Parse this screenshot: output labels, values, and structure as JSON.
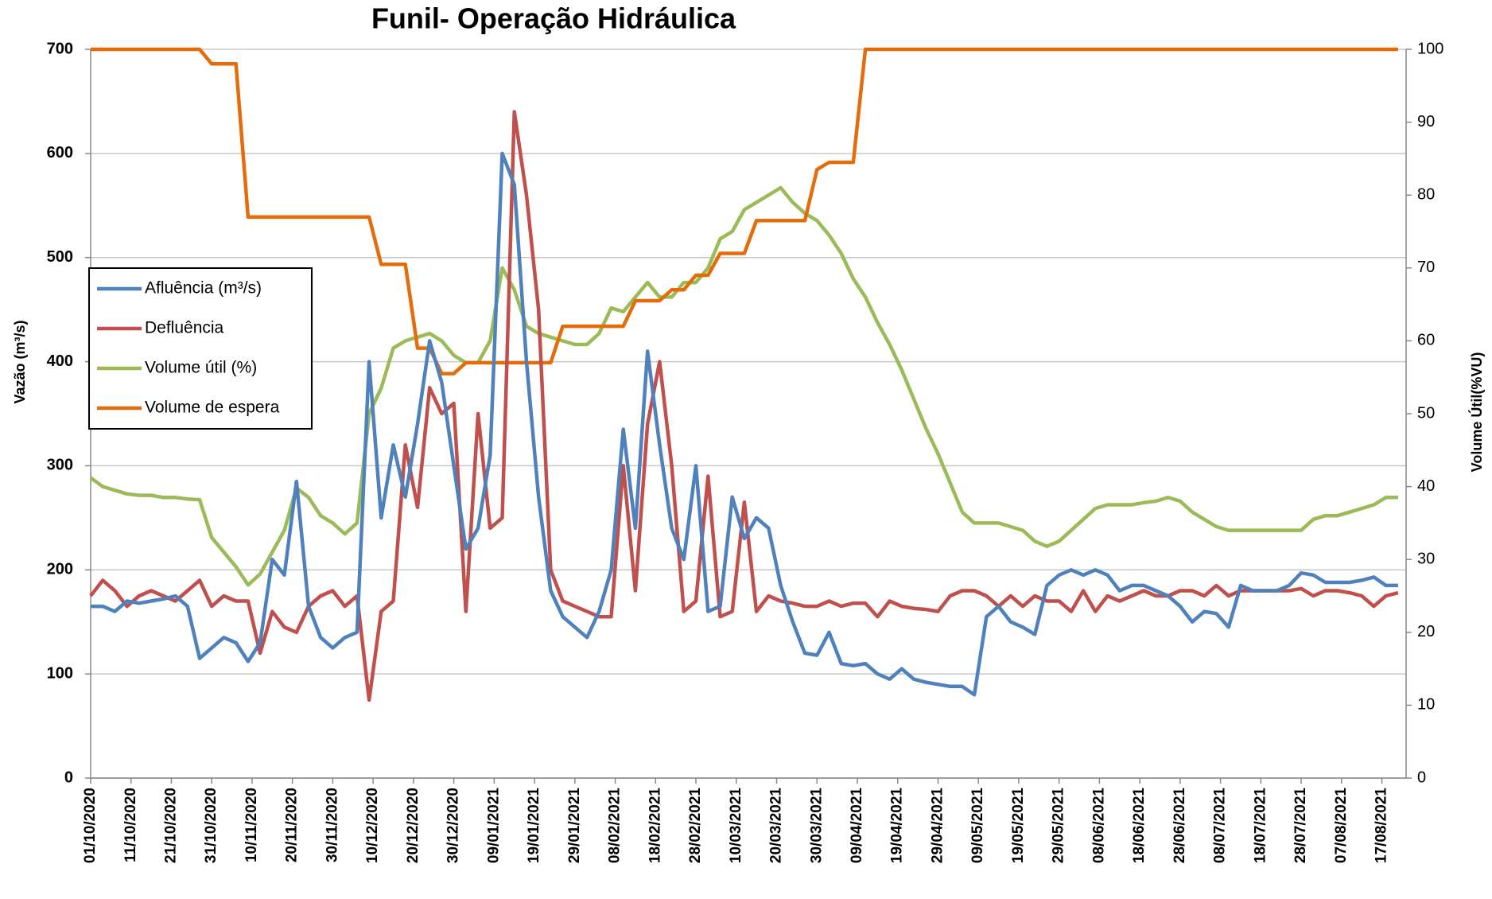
{
  "chart_data": {
    "type": "line",
    "title": "Funil- Operação Hidráulica",
    "y_label": "Vazão (m³/s)",
    "y2_label": "Volume Útil(%VU)",
    "xlim": [
      "01/10/2020",
      "23/08/2021"
    ],
    "xticks": [
      "01/10/2020",
      "11/10/2020",
      "21/10/2020",
      "31/10/2020",
      "10/11/2020",
      "20/11/2020",
      "30/11/2020",
      "10/12/2020",
      "20/12/2020",
      "30/12/2020",
      "09/01/2021",
      "19/01/2021",
      "29/01/2021",
      "08/02/2021",
      "18/02/2021",
      "28/02/2021",
      "10/03/2021",
      "20/03/2021",
      "30/03/2021",
      "09/04/2021",
      "19/04/2021",
      "29/04/2021",
      "09/05/2021",
      "19/05/2021",
      "29/05/2021",
      "08/06/2021",
      "18/06/2021",
      "28/06/2021",
      "08/07/2021",
      "18/07/2021",
      "28/07/2021",
      "07/08/2021",
      "17/08/2021"
    ],
    "ylim": [
      0,
      700
    ],
    "yticks": [
      0,
      100,
      200,
      300,
      400,
      500,
      600,
      700
    ],
    "y2lim": [
      0,
      100
    ],
    "y2ticks": [
      0,
      10,
      20,
      30,
      40,
      50,
      60,
      70,
      80,
      90,
      100
    ],
    "grid": true,
    "legend": "upper-left",
    "x": [
      "01/10/2020",
      "04/10/2020",
      "07/10/2020",
      "10/10/2020",
      "13/10/2020",
      "16/10/2020",
      "19/10/2020",
      "22/10/2020",
      "25/10/2020",
      "28/10/2020",
      "31/10/2020",
      "03/11/2020",
      "06/11/2020",
      "09/11/2020",
      "12/11/2020",
      "15/11/2020",
      "18/11/2020",
      "21/11/2020",
      "24/11/2020",
      "27/11/2020",
      "30/11/2020",
      "03/12/2020",
      "06/12/2020",
      "09/12/2020",
      "12/12/2020",
      "15/12/2020",
      "18/12/2020",
      "21/12/2020",
      "24/12/2020",
      "27/12/2020",
      "30/12/2020",
      "02/01/2021",
      "05/01/2021",
      "08/01/2021",
      "11/01/2021",
      "14/01/2021",
      "17/01/2021",
      "20/01/2021",
      "23/01/2021",
      "26/01/2021",
      "29/01/2021",
      "01/02/2021",
      "04/02/2021",
      "07/02/2021",
      "10/02/2021",
      "13/02/2021",
      "16/02/2021",
      "19/02/2021",
      "22/02/2021",
      "25/02/2021",
      "28/02/2021",
      "03/03/2021",
      "06/03/2021",
      "09/03/2021",
      "12/03/2021",
      "15/03/2021",
      "18/03/2021",
      "21/03/2021",
      "24/03/2021",
      "27/03/2021",
      "30/03/2021",
      "02/04/2021",
      "05/04/2021",
      "08/04/2021",
      "11/04/2021",
      "14/04/2021",
      "17/04/2021",
      "20/04/2021",
      "23/04/2021",
      "26/04/2021",
      "29/04/2021",
      "02/05/2021",
      "05/05/2021",
      "08/05/2021",
      "11/05/2021",
      "14/05/2021",
      "17/05/2021",
      "20/05/2021",
      "23/05/2021",
      "26/05/2021",
      "29/05/2021",
      "01/06/2021",
      "04/06/2021",
      "07/06/2021",
      "10/06/2021",
      "13/06/2021",
      "16/06/2021",
      "19/06/2021",
      "22/06/2021",
      "25/06/2021",
      "28/06/2021",
      "01/07/2021",
      "04/07/2021",
      "07/07/2021",
      "10/07/2021",
      "13/07/2021",
      "16/07/2021",
      "19/07/2021",
      "22/07/2021",
      "25/07/2021",
      "28/07/2021",
      "31/07/2021",
      "03/08/2021",
      "06/08/2021",
      "09/08/2021",
      "12/08/2021",
      "15/08/2021",
      "18/08/2021",
      "21/08/2021"
    ],
    "series": [
      {
        "name": "Afluência (m³/s)",
        "color": "#4f81bd",
        "values": [
          165,
          165,
          160,
          170,
          168,
          170,
          172,
          175,
          165,
          115,
          125,
          135,
          130,
          112,
          130,
          210,
          195,
          285,
          165,
          135,
          125,
          135,
          140,
          400,
          250,
          320,
          270,
          340,
          420,
          380,
          300,
          220,
          240,
          310,
          600,
          570,
          400,
          270,
          180,
          155,
          145,
          135,
          160,
          200,
          335,
          240,
          410,
          320,
          240,
          210,
          300,
          160,
          165,
          270,
          230,
          250,
          240,
          185,
          150,
          120,
          118,
          140,
          110,
          108,
          110,
          100,
          95,
          105,
          95,
          92,
          90,
          88,
          88,
          80,
          155,
          165,
          150,
          145,
          138,
          185,
          195,
          200,
          195,
          200,
          195,
          180,
          185,
          185,
          180,
          175,
          165,
          150,
          160,
          158,
          145,
          185,
          180,
          180,
          180,
          185,
          197,
          195,
          188,
          188,
          188,
          190,
          193,
          185,
          185
        ]
      },
      {
        "name": "Defluência",
        "color": "#c0504d",
        "values": [
          175,
          190,
          180,
          165,
          175,
          180,
          175,
          170,
          180,
          190,
          165,
          175,
          170,
          170,
          120,
          160,
          145,
          140,
          165,
          175,
          180,
          165,
          175,
          75,
          160,
          170,
          320,
          260,
          375,
          350,
          360,
          160,
          350,
          240,
          250,
          640,
          560,
          450,
          200,
          170,
          165,
          160,
          155,
          155,
          300,
          180,
          340,
          400,
          300,
          160,
          170,
          290,
          155,
          160,
          265,
          160,
          175,
          170,
          168,
          165,
          165,
          170,
          165,
          168,
          168,
          155,
          170,
          165,
          163,
          162,
          160,
          175,
          180,
          180,
          175,
          165,
          175,
          165,
          175,
          170,
          170,
          160,
          180,
          160,
          175,
          170,
          175,
          180,
          175,
          175,
          180,
          180,
          175,
          185,
          175,
          180,
          180,
          180,
          180,
          180,
          182,
          175,
          180,
          180,
          178,
          175,
          165,
          175,
          178
        ]
      },
      {
        "name": "Volume útil (%)",
        "color": "#9bbb59",
        "axis": "y2",
        "values": [
          41.2,
          40,
          39.5,
          39,
          38.8,
          38.8,
          38.5,
          38.5,
          38.3,
          38.2,
          33,
          31,
          29,
          26.5,
          28,
          31,
          34,
          39.8,
          38.5,
          36,
          35,
          33.5,
          35,
          50,
          53.5,
          59,
          60,
          60.5,
          61,
          60,
          58,
          57,
          57,
          60,
          70,
          67,
          62,
          61,
          60.5,
          60,
          59.5,
          59.5,
          61,
          64.5,
          64,
          66,
          68,
          66,
          66,
          68,
          68,
          70,
          74,
          75,
          78,
          79,
          80,
          81,
          79,
          77.5,
          76.5,
          74.5,
          72,
          68.5,
          66,
          62.5,
          59.5,
          56,
          52,
          48,
          44.5,
          40.5,
          36.5,
          35,
          35,
          35,
          34.5,
          34,
          32.5,
          31.8,
          32.5,
          34,
          35.5,
          37,
          37.5,
          37.5,
          37.5,
          37.8,
          38,
          38.5,
          38,
          36.5,
          35.5,
          34.5,
          34,
          34,
          34,
          34,
          34,
          34,
          34,
          35.5,
          36,
          36,
          36.5,
          37,
          37.5,
          38.5,
          38.5
        ]
      },
      {
        "name": "Volume de espera",
        "color": "#e46c0a",
        "axis": "y2",
        "values": [
          100,
          100,
          100,
          100,
          100,
          100,
          100,
          100,
          100,
          100,
          98,
          98,
          98,
          77,
          77,
          77,
          77,
          77,
          77,
          77,
          77,
          77,
          77,
          77,
          70.5,
          70.5,
          70.5,
          59,
          59,
          55.5,
          55.5,
          57,
          57,
          57,
          57,
          57,
          57,
          57,
          57,
          62,
          62,
          62,
          62,
          62,
          62,
          65.5,
          65.5,
          65.5,
          67,
          67,
          69,
          69,
          72,
          72,
          72,
          76.5,
          76.5,
          76.5,
          76.5,
          76.5,
          83.5,
          84.5,
          84.5,
          84.5,
          100,
          100,
          100,
          100,
          100,
          100,
          100,
          100,
          100,
          100,
          100,
          100,
          100,
          100,
          100,
          100,
          100,
          100,
          100,
          100,
          100,
          100,
          100,
          100,
          100,
          100,
          100,
          100,
          100,
          100,
          100,
          100,
          100,
          100,
          100,
          100,
          100,
          100,
          100,
          100,
          100,
          100,
          100,
          100,
          100
        ]
      }
    ]
  }
}
